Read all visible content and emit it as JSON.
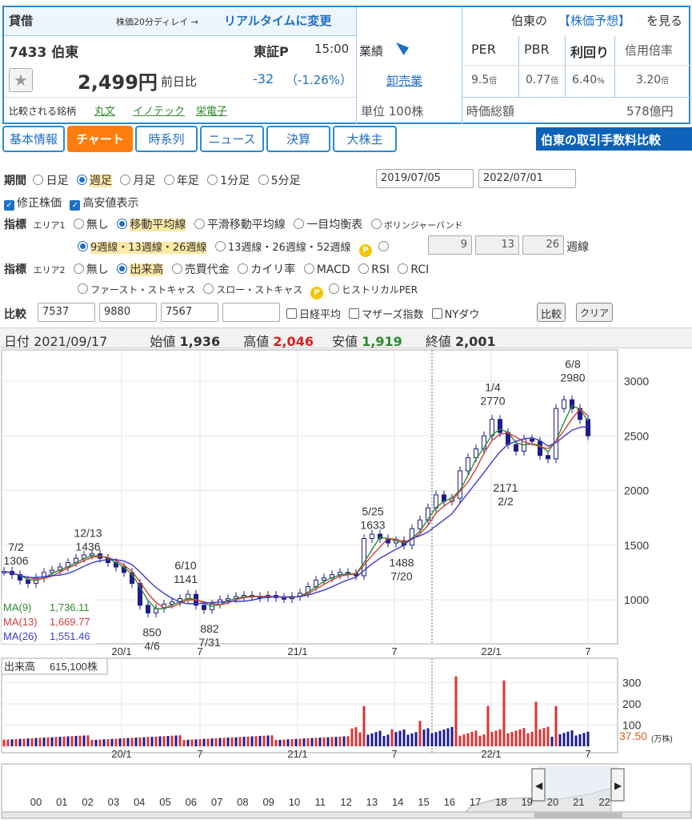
{
  "header": {
    "tag": "貸借",
    "delay_note": "株価20分ディレイ →",
    "realtime_link": "リアルタイムに変更",
    "forecast_prefix": "伯東の",
    "forecast_link": "【株価予想】",
    "forecast_suffix": "を見る",
    "code_name": "7433 伯東",
    "market": "東証P",
    "time": "15:00",
    "price": "2,499円",
    "change_label": "前日比",
    "change": "-32",
    "change_pct": "（-1.26%）",
    "compare_label": "比較される銘柄",
    "compare_links": [
      "丸文",
      "イノテック",
      "栄電子"
    ],
    "gyoseki_label": "業績",
    "industry": "卸売業",
    "unit": "単位 100株",
    "metrics": [
      {
        "label": "PER",
        "value": "9.5",
        "unit": "倍"
      },
      {
        "label": "PBR",
        "value": "0.77",
        "unit": "倍"
      },
      {
        "label": "利回り",
        "value": "6.40",
        "unit": "%"
      },
      {
        "label": "信用倍率",
        "value": "3.20",
        "unit": "倍"
      }
    ],
    "mcap_label": "時価総額",
    "mcap_value": "578億円"
  },
  "tabs": [
    "基本情報",
    "チャート",
    "時系列",
    "ニュース",
    "決算",
    "大株主"
  ],
  "active_tab": "チャート",
  "fee_banner": "伯東の取引手数料比較",
  "controls": {
    "period_label": "期間",
    "period_options": [
      "日足",
      "週足",
      "月足",
      "年足",
      "1分足",
      "5分足"
    ],
    "period_selected": "週足",
    "date_from": "2019/07/05",
    "date_to": "2022/07/01",
    "adjusted": "修正株価",
    "highlow": "高安値表示",
    "ind_label": "指標",
    "area1": "エリア1",
    "area1_options": [
      "無し",
      "移動平均線",
      "平滑移動平均線",
      "一目均衡表",
      "ボリンジャーバンド"
    ],
    "area1_selected": "移動平均線",
    "ma_options": [
      "9週線・13週線・26週線",
      "13週線・26週線・52週線"
    ],
    "ma_custom": [
      "9",
      "13",
      "26"
    ],
    "ma_custom_unit": "週線",
    "area2": "エリア2",
    "area2_options": [
      "無し",
      "出来高",
      "売買代金",
      "カイリ率",
      "MACD",
      "RSI",
      "RCI"
    ],
    "area2_options_b": [
      "ファースト・ストキャス",
      "スロー・ストキャス",
      "ヒストリカルPER"
    ],
    "area2_selected": "出来高",
    "p_badge": "P",
    "compare_label": "比較",
    "compare_codes": [
      "7537",
      "9880",
      "7567",
      ""
    ],
    "compare_checks": [
      "日経平均",
      "マザーズ指数",
      "NYダウ"
    ],
    "compare_btn": "比較",
    "clear_btn": "クリア"
  },
  "ohlc": {
    "date_label": "日付",
    "date": "2021/09/17",
    "open_label": "始値",
    "open": "1,936",
    "high_label": "高値",
    "high": "2,046",
    "low_label": "安値",
    "low": "1,919",
    "close_label": "終値",
    "close": "2,001"
  },
  "chart_data": {
    "type": "candlestick",
    "y_ticks": [
      1000,
      1500,
      2000,
      2500,
      3000
    ],
    "x_ticks": [
      "20/1",
      "7",
      "21/1",
      "7",
      "22/1",
      "7"
    ],
    "annotations": [
      {
        "date": "7/2",
        "value": "1306"
      },
      {
        "date": "12/13",
        "value": "1436"
      },
      {
        "date": "4/6",
        "value": "850"
      },
      {
        "date": "6/10",
        "value": "1141"
      },
      {
        "date": "7/31",
        "value": "882"
      },
      {
        "date": "5/25",
        "value": "1633"
      },
      {
        "date": "7/20",
        "value": "1488"
      },
      {
        "date": "1/4",
        "value": "2770"
      },
      {
        "date": "2/2",
        "value": "2171"
      },
      {
        "date": "6/8",
        "value": "2980"
      }
    ],
    "ma_legend": [
      {
        "name": "MA(9)",
        "value": "1,736.11",
        "color": "#2e8b2e"
      },
      {
        "name": "MA(13)",
        "value": "1,669.77",
        "color": "#d23c3c"
      },
      {
        "name": "MA(26)",
        "value": "1,551.46",
        "color": "#3b3bd0"
      }
    ],
    "volume_label": "出来高",
    "volume_value": "615,100株",
    "volume_ticks": [
      100,
      200,
      300
    ],
    "volume_last": "37.50",
    "volume_unit": "(万株)",
    "nav_years": [
      "00",
      "01",
      "02",
      "03",
      "04",
      "05",
      "06",
      "07",
      "08",
      "09",
      "10",
      "11",
      "12",
      "13",
      "14",
      "15",
      "16",
      "17",
      "18",
      "19",
      "20",
      "21",
      "22"
    ]
  }
}
